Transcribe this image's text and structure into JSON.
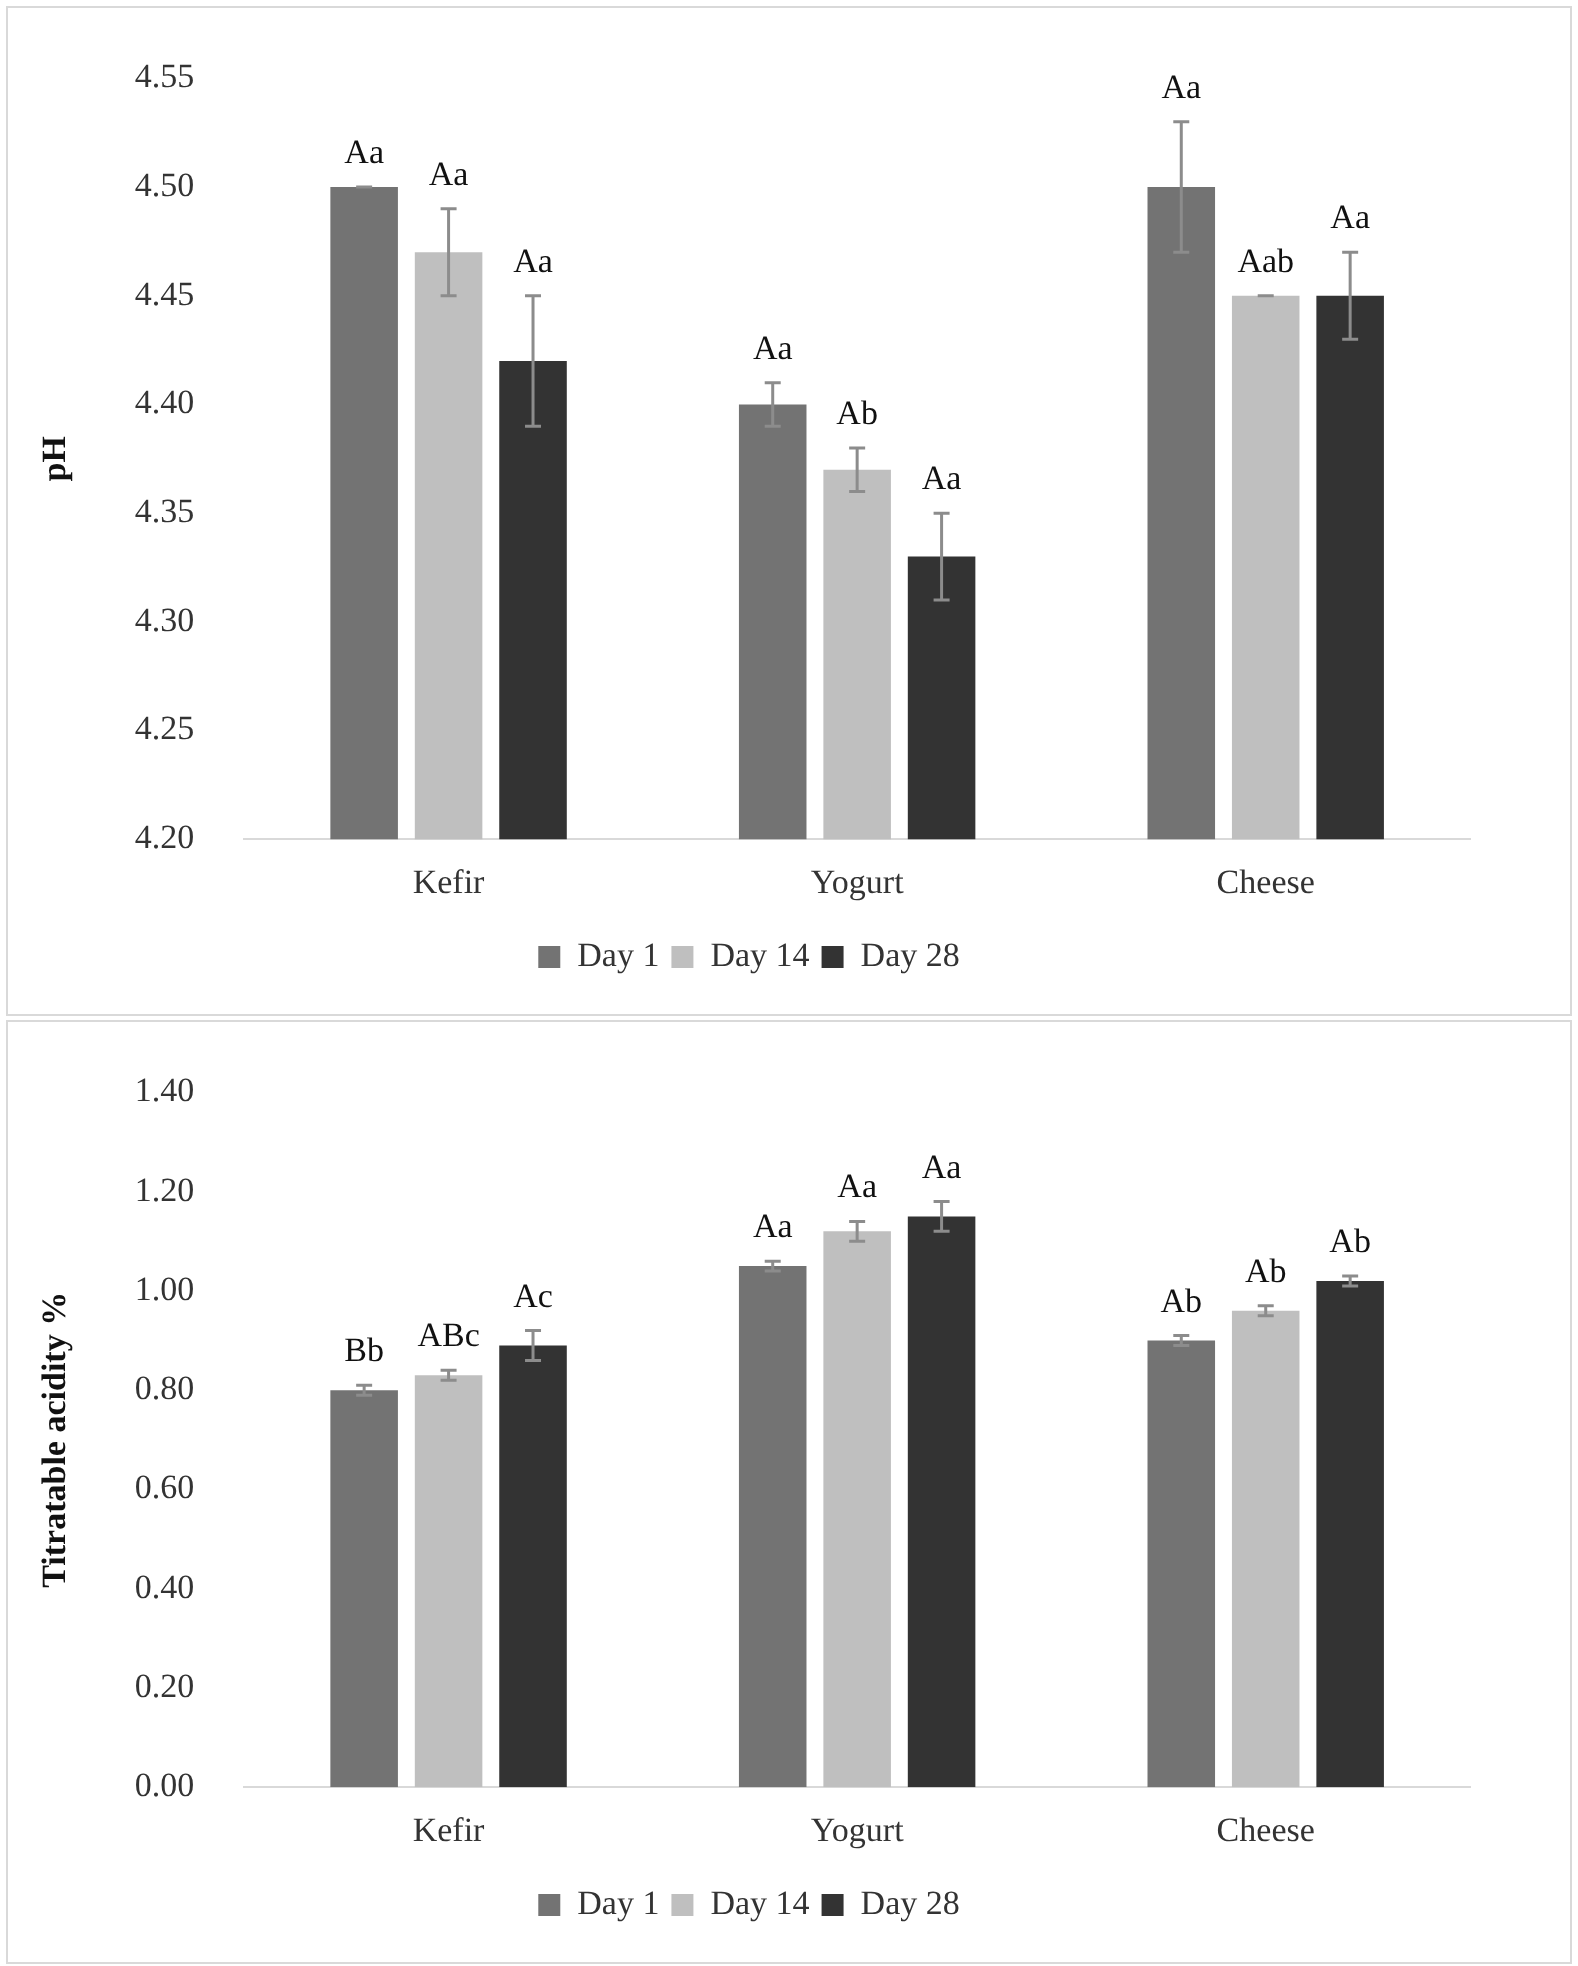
{
  "chart_data": [
    {
      "type": "bar",
      "ylabel": "pH",
      "categories": [
        "Kefir",
        "Yogurt",
        "Cheese"
      ],
      "series": [
        {
          "name": "Day 1",
          "color": "#737373",
          "values": [
            4.5,
            4.4,
            4.5
          ],
          "errors": [
            0,
            0.01,
            0.03
          ],
          "value_labels": [
            "Aa",
            "Aa",
            "Aa"
          ]
        },
        {
          "name": "Day 14",
          "color": "#bfbfbf",
          "values": [
            4.47,
            4.37,
            4.45
          ],
          "errors": [
            0.02,
            0.01,
            0
          ],
          "value_labels": [
            "Aa",
            "Ab",
            "Aab"
          ]
        },
        {
          "name": "Day 28",
          "color": "#333333",
          "values": [
            4.42,
            4.33,
            4.45
          ],
          "errors": [
            0.03,
            0.02,
            0.02
          ],
          "value_labels": [
            "Aa",
            "Aa",
            "Aa"
          ]
        }
      ],
      "ylim": [
        4.2,
        4.55
      ],
      "yticks": [
        {
          "value": 4.2,
          "label": "4.20"
        },
        {
          "value": 4.25,
          "label": "4.25"
        },
        {
          "value": 4.3,
          "label": "4.30"
        },
        {
          "value": 4.35,
          "label": "4.35"
        },
        {
          "value": 4.4,
          "label": "4.40"
        },
        {
          "value": 4.45,
          "label": "4.45"
        },
        {
          "value": 4.5,
          "label": "4.50"
        },
        {
          "value": 4.55,
          "label": "4.55"
        }
      ],
      "grid": false,
      "legend": "bottom"
    },
    {
      "type": "bar",
      "ylabel": "Titratable acidity %",
      "categories": [
        "Kefir",
        "Yogurt",
        "Cheese"
      ],
      "series": [
        {
          "name": "Day 1",
          "color": "#737373",
          "values": [
            0.8,
            1.05,
            0.9
          ],
          "errors": [
            0.01,
            0.01,
            0.01
          ],
          "value_labels": [
            "Bb",
            "Aa",
            "Ab"
          ]
        },
        {
          "name": "Day 14",
          "color": "#bfbfbf",
          "values": [
            0.83,
            1.12,
            0.96
          ],
          "errors": [
            0.01,
            0.02,
            0.01
          ],
          "value_labels": [
            "ABc",
            "Aa",
            "Ab"
          ]
        },
        {
          "name": "Day 28",
          "color": "#333333",
          "values": [
            0.89,
            1.15,
            1.02
          ],
          "errors": [
            0.03,
            0.03,
            0.01
          ],
          "value_labels": [
            "Ac",
            "Aa",
            "Ab"
          ]
        }
      ],
      "ylim": [
        0,
        1.4
      ],
      "yticks": [
        {
          "value": 0,
          "label": "0.00"
        },
        {
          "value": 0.2,
          "label": "0.20"
        },
        {
          "value": 0.4,
          "label": "0.40"
        },
        {
          "value": 0.6,
          "label": "0.60"
        },
        {
          "value": 0.8,
          "label": "0.80"
        },
        {
          "value": 1.0,
          "label": "1.00"
        },
        {
          "value": 1.2,
          "label": "1.20"
        },
        {
          "value": 1.4,
          "label": "1.40"
        }
      ],
      "grid": false,
      "legend": "bottom"
    }
  ]
}
